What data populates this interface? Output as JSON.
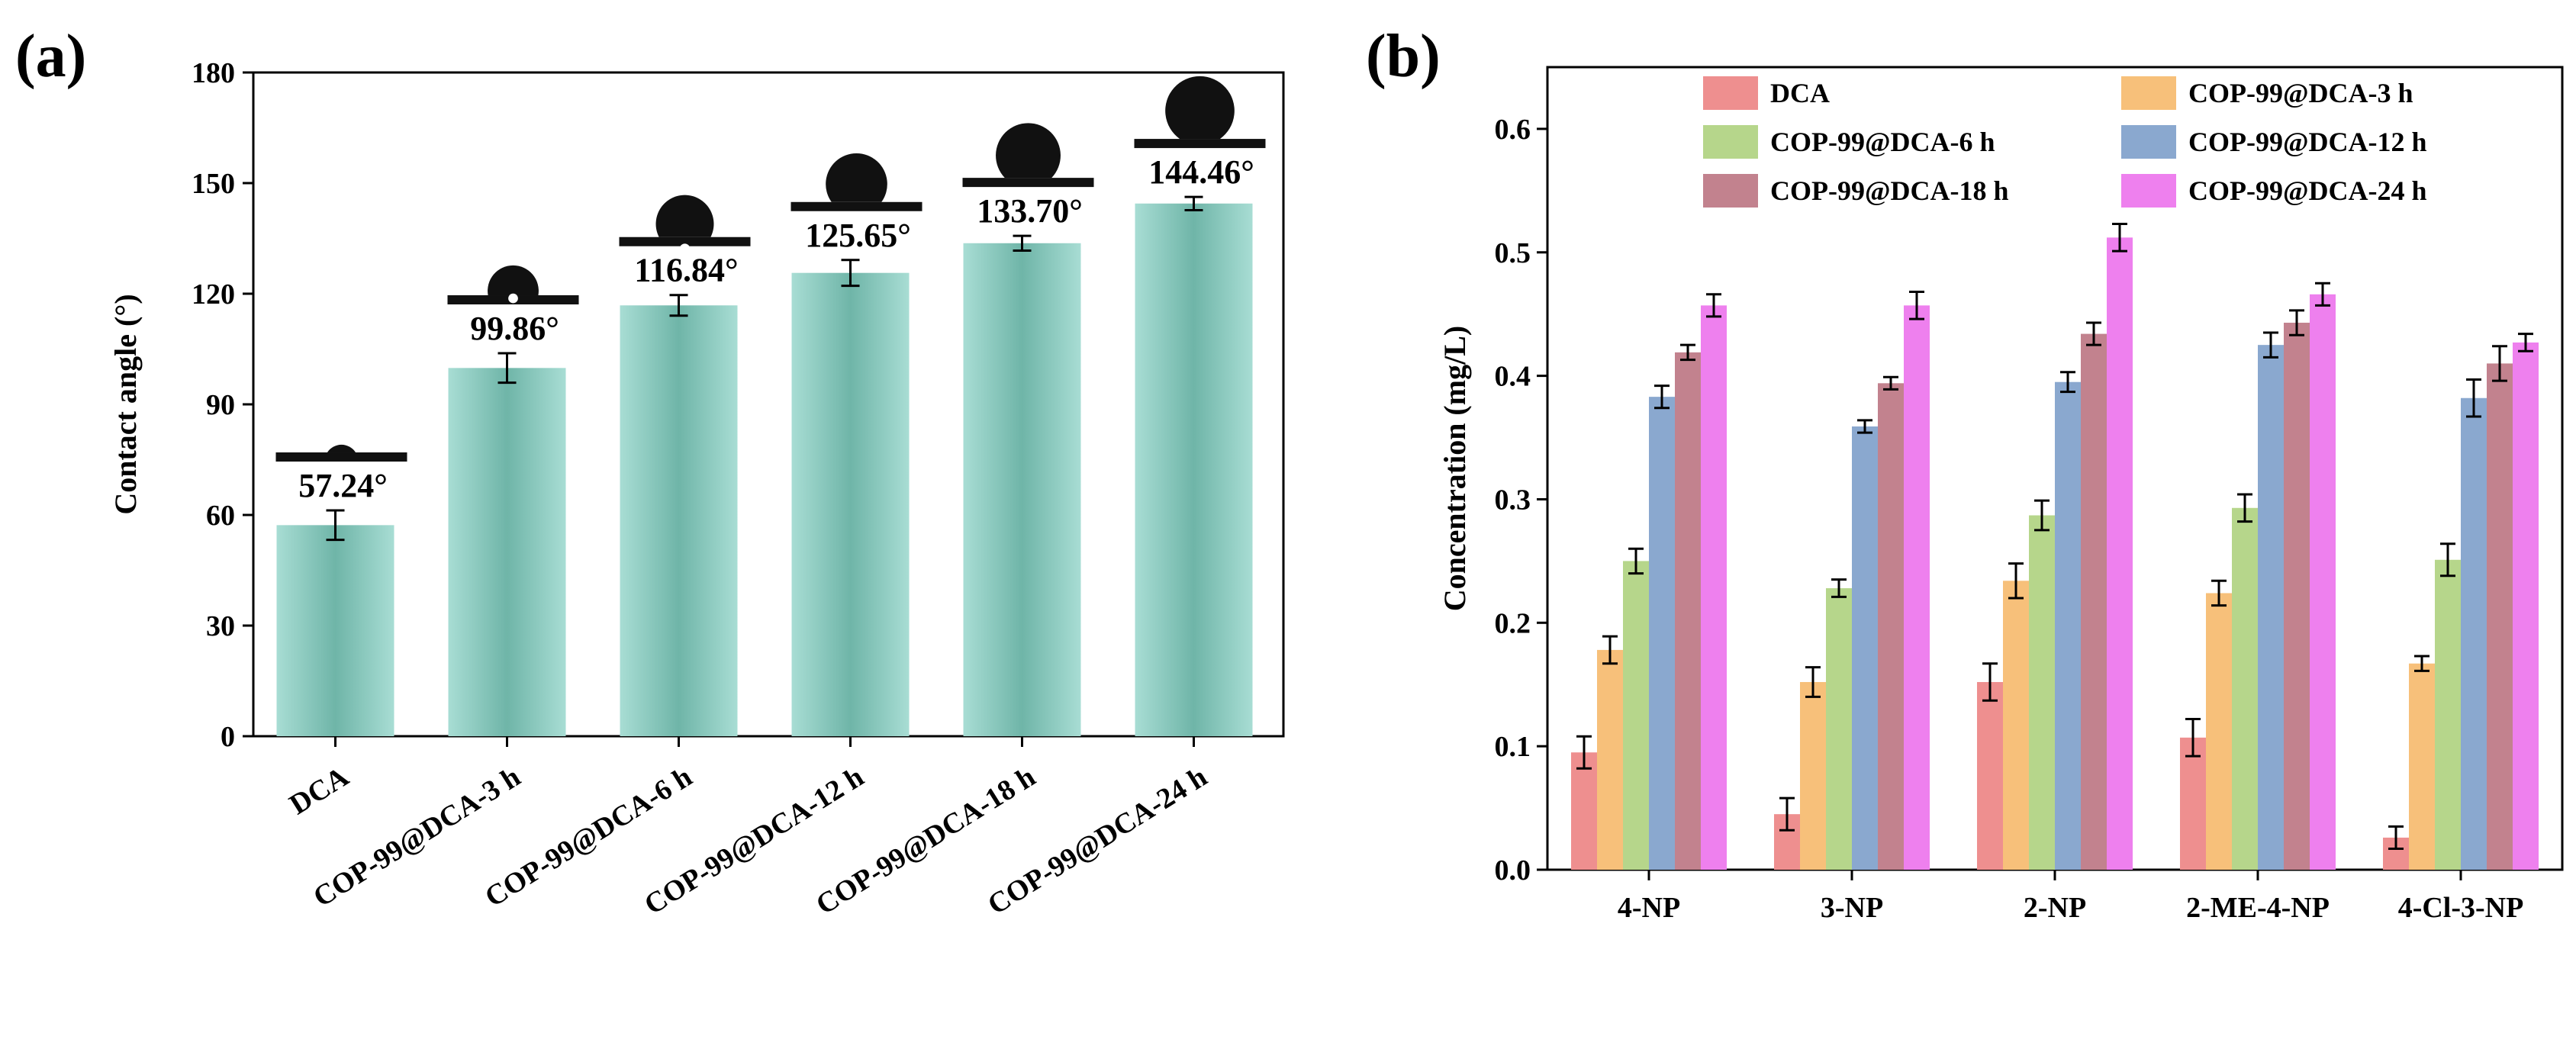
{
  "panels": {
    "a_label": "(a)",
    "b_label": "(b)"
  },
  "chart_data": [
    {
      "id": "a",
      "type": "bar",
      "title": "",
      "xlabel": "",
      "ylabel": "Contact angle (°)",
      "ylim": [
        0,
        180
      ],
      "yticks": [
        "0",
        "30",
        "60",
        "90",
        "120",
        "150",
        "180"
      ],
      "categories": [
        "DCA",
        "COP-99@DCA-3 h",
        "COP-99@DCA-6 h",
        "COP-99@DCA-12 h",
        "COP-99@DCA-18 h",
        "COP-99@DCA-24 h"
      ],
      "values": [
        57.24,
        99.86,
        116.84,
        125.65,
        133.7,
        144.46
      ],
      "errors": [
        4.0,
        4.0,
        2.8,
        3.5,
        2.0,
        1.8
      ],
      "value_labels": [
        "57.24°",
        "99.86°",
        "116.84°",
        "125.65°",
        "133.70°",
        "144.46°"
      ],
      "bar_color": "#8fcfc4",
      "annotations": "water droplet image above each bar"
    },
    {
      "id": "b",
      "type": "bar",
      "title": "",
      "xlabel": "",
      "ylabel": "Concentration (mg/L)",
      "ylim": [
        0,
        0.65
      ],
      "yticks": [
        "0.0",
        "0.1",
        "0.2",
        "0.3",
        "0.4",
        "0.5",
        "0.6"
      ],
      "categories": [
        "4-NP",
        "3-NP",
        "2-NP",
        "2-ME-4-NP",
        "4-Cl-3-NP"
      ],
      "series": [
        {
          "name": "DCA",
          "color": "#ee8f8f",
          "values": [
            0.095,
            0.045,
            0.152,
            0.107,
            0.026
          ],
          "errors": [
            0.013,
            0.013,
            0.015,
            0.015,
            0.009
          ]
        },
        {
          "name": "COP-99@DCA-3 h",
          "color": "#f7c07a",
          "values": [
            0.178,
            0.152,
            0.234,
            0.224,
            0.167
          ],
          "errors": [
            0.011,
            0.012,
            0.014,
            0.01,
            0.006
          ]
        },
        {
          "name": "COP-99@DCA-6 h",
          "color": "#b6d68b",
          "values": [
            0.25,
            0.228,
            0.287,
            0.293,
            0.251
          ],
          "errors": [
            0.01,
            0.007,
            0.012,
            0.011,
            0.013
          ]
        },
        {
          "name": "COP-99@DCA-12 h",
          "color": "#8aa8cf",
          "values": [
            0.383,
            0.359,
            0.395,
            0.425,
            0.382
          ],
          "errors": [
            0.009,
            0.005,
            0.008,
            0.01,
            0.015
          ]
        },
        {
          "name": "COP-99@DCA-18 h",
          "color": "#c2828e",
          "values": [
            0.419,
            0.394,
            0.434,
            0.443,
            0.41
          ],
          "errors": [
            0.006,
            0.005,
            0.009,
            0.01,
            0.014
          ]
        },
        {
          "name": "COP-99@DCA-24 h",
          "color": "#ee80ee",
          "values": [
            0.457,
            0.457,
            0.512,
            0.466,
            0.427
          ],
          "errors": [
            0.009,
            0.011,
            0.011,
            0.009,
            0.007
          ]
        }
      ],
      "legend": "top, two columns"
    }
  ]
}
